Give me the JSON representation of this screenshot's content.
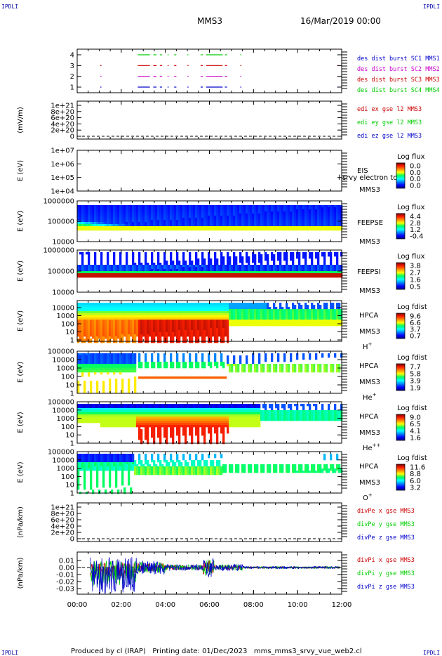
{
  "header": {
    "corner_tl": "IPDLI",
    "corner_tr": "IPDLI",
    "corner_bl": "IPDLI",
    "corner_br": "IPDLI",
    "mission": "MMS3",
    "date": "16/Mar/2019 00:00"
  },
  "footer": {
    "text": "Produced by cl (IRAP)   Printing date: 01/Dec/2023   mms_mms3_srvy_vue_web2.cl"
  },
  "colors": {
    "ch1": "#0000cc",
    "ch2": "#cc00cc",
    "ch3": "#cc0000",
    "ch4": "#00cc00",
    "x": "#cc0000",
    "y": "#00cc00",
    "z": "#0000cc"
  },
  "chart_data": [
    {
      "type": "line",
      "panel": "burst",
      "yticks": [
        "1",
        "2",
        "3",
        "4"
      ],
      "legend": [
        "des dist burst SC1 MMS1",
        "des dist burst SC2 MMS2",
        "des dist burst SC3 MMS3",
        "des dist burst SC4 MMS4"
      ]
    },
    {
      "type": "line",
      "panel": "edi",
      "ylabel": "(mV/m)",
      "yticks": [
        "0",
        "2e+20",
        "4e+20",
        "6e+20",
        "8e+20",
        "1e+21"
      ],
      "legend": [
        "edi ex gse l2 MMS3",
        "edi ey gse l2 MMS3",
        "edi ez gse l2 MMS3"
      ]
    },
    {
      "type": "heatmap",
      "panel": "eis",
      "ylabel": "E (eV)",
      "yticks": [
        "1e+04",
        "1e+05",
        "1e+06",
        "1e+07"
      ],
      "name": "EIS",
      "sub": "MMS3",
      "extra": "l srvy electron to",
      "cb_title": "Log flux",
      "cb_ticks": [
        "0.0",
        "0.0",
        "0.0",
        "0.0"
      ]
    },
    {
      "type": "heatmap",
      "panel": "feeps_e",
      "ylabel": "E (eV)",
      "yticks": [
        "10000",
        "100000",
        "1000000"
      ],
      "name": "FEEPSE",
      "sub": "MMS3",
      "cb_title": "Log flux",
      "cb_ticks": [
        "4.4",
        "2.8",
        "1.2",
        "-0.4"
      ]
    },
    {
      "type": "heatmap",
      "panel": "feeps_i",
      "ylabel": "E (eV)",
      "yticks": [
        "10000",
        "100000",
        "1000000"
      ],
      "name": "FEEPSI",
      "sub": "MMS3",
      "cb_title": "Log flux",
      "cb_ticks": [
        "3.8",
        "2.7",
        "1.6",
        "0.5"
      ]
    },
    {
      "type": "heatmap",
      "panel": "hpca_h",
      "ylabel": "E (eV)",
      "yticks": [
        "1",
        "10",
        "100",
        "1000",
        "10000"
      ],
      "name": "HPCA",
      "sub": "MMS3",
      "species": "H",
      "sup": "+",
      "cb_title": "Log fdist",
      "cb_ticks": [
        "9.6",
        "6.6",
        "3.7",
        "0.7"
      ]
    },
    {
      "type": "heatmap",
      "panel": "hpca_he",
      "ylabel": "E (eV)",
      "yticks": [
        "1",
        "10",
        "100",
        "1000",
        "10000",
        "100000"
      ],
      "name": "HPCA",
      "sub": "MMS3",
      "species": "He",
      "sup": "+",
      "cb_title": "Log fdist",
      "cb_ticks": [
        "7.7",
        "5.8",
        "3.9",
        "1.9"
      ]
    },
    {
      "type": "heatmap",
      "panel": "hpca_hepp",
      "ylabel": "E (eV)",
      "yticks": [
        "1",
        "10",
        "100",
        "1000",
        "10000",
        "100000"
      ],
      "name": "HPCA",
      "sub": "MMS3",
      "species": "He",
      "sup": "++",
      "cb_title": "Log fdist",
      "cb_ticks": [
        "9.0",
        "6.5",
        "4.1",
        "1.6"
      ]
    },
    {
      "type": "heatmap",
      "panel": "hpca_o",
      "ylabel": "E (eV)",
      "yticks": [
        "1",
        "10",
        "100",
        "1000",
        "10000",
        "100000"
      ],
      "name": "HPCA",
      "sub": "MMS3",
      "species": "O",
      "sup": "+",
      "cb_title": "Log fdist",
      "cb_ticks": [
        "11.6",
        "8.8",
        "6.0",
        "3.2"
      ]
    },
    {
      "type": "line",
      "panel": "divpe",
      "ylabel": "(nPa/km)",
      "yticks": [
        "0",
        "2e+20",
        "4e+20",
        "6e+20",
        "8e+20",
        "1e+21"
      ],
      "legend": [
        "divPe x gse MMS3",
        "divPe y gse MMS3",
        "divPe z gse MMS3"
      ]
    },
    {
      "type": "line",
      "panel": "divpi",
      "ylabel": "(nPa/km)",
      "yticks": [
        "-0.03",
        "-0.02",
        "-0.01",
        "0.00",
        "0.01"
      ],
      "legend": [
        "divPi x gse MMS3",
        "divPi y gse MMS3",
        "divPi z gse MMS3"
      ]
    }
  ],
  "time_axis": {
    "ticks": [
      "00:00",
      "02:00",
      "04:00",
      "06:00",
      "08:00",
      "10:00",
      "12:00"
    ],
    "range_hours": [
      0,
      12
    ]
  }
}
